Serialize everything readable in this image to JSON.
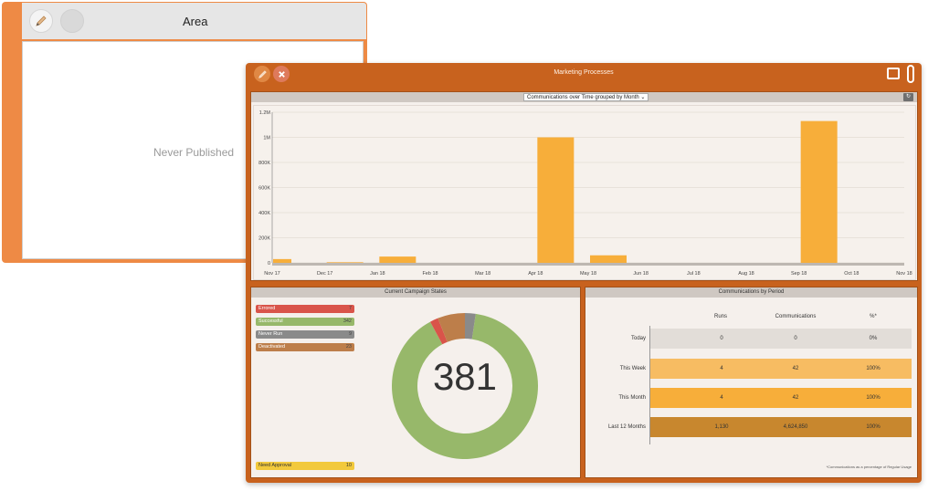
{
  "area_window": {
    "title": "Area",
    "status": "Never Published"
  },
  "window": {
    "title": "Marketing Processes"
  },
  "chart_panel": {
    "selector": "Communications over Time grouped by Month"
  },
  "chart_data": {
    "type": "bar",
    "categories": [
      "Nov 17",
      "Dec 17",
      "Jan 18",
      "Feb 18",
      "Mar 18",
      "Apr 18",
      "May 18",
      "Jun 18",
      "Jul 18",
      "Aug 18",
      "Sep 18",
      "Oct 18",
      "Nov 18"
    ],
    "values": [
      30000,
      5000,
      50000,
      0,
      0,
      1000000,
      60000,
      0,
      0,
      0,
      1130000,
      0,
      0
    ],
    "yticks": [
      "0",
      "200K",
      "400K",
      "600K",
      "800K",
      "1M",
      "1.2M"
    ],
    "ylim": [
      0,
      1200000
    ],
    "bar_color": "#f7ae3a",
    "grid": true
  },
  "states_panel": {
    "title": "Current Campaign States",
    "total": "381",
    "states": [
      {
        "label": "Errored",
        "count": "7",
        "color": "#d9544a",
        "value": 7
      },
      {
        "label": "Successful",
        "count": "342",
        "color": "#97b86a",
        "value": 342
      },
      {
        "label": "Never Run",
        "count": "9",
        "color": "#8a8a8a",
        "value": 9
      },
      {
        "label": "Deactivated",
        "count": "23",
        "color": "#bd7e4a",
        "value": 23
      }
    ],
    "approval": {
      "label": "Need Approval",
      "count": "10"
    }
  },
  "period_panel": {
    "title": "Communications by Period",
    "columns": [
      "Runs",
      "Communications",
      "%*"
    ],
    "rows": [
      {
        "label": "Today",
        "runs": "0",
        "communications": "0",
        "pct": "0%",
        "color": "#e2ddd8"
      },
      {
        "label": "This Week",
        "runs": "4",
        "communications": "42",
        "pct": "100%",
        "color": "#f7bc62"
      },
      {
        "label": "This Month",
        "runs": "4",
        "communications": "42",
        "pct": "100%",
        "color": "#f7ae3a"
      },
      {
        "label": "Last 12 Months",
        "runs": "1,130",
        "communications": "4,624,850",
        "pct": "100%",
        "color": "#c8872e"
      }
    ],
    "note": "*Communications as a percentage of Regular Usage"
  }
}
